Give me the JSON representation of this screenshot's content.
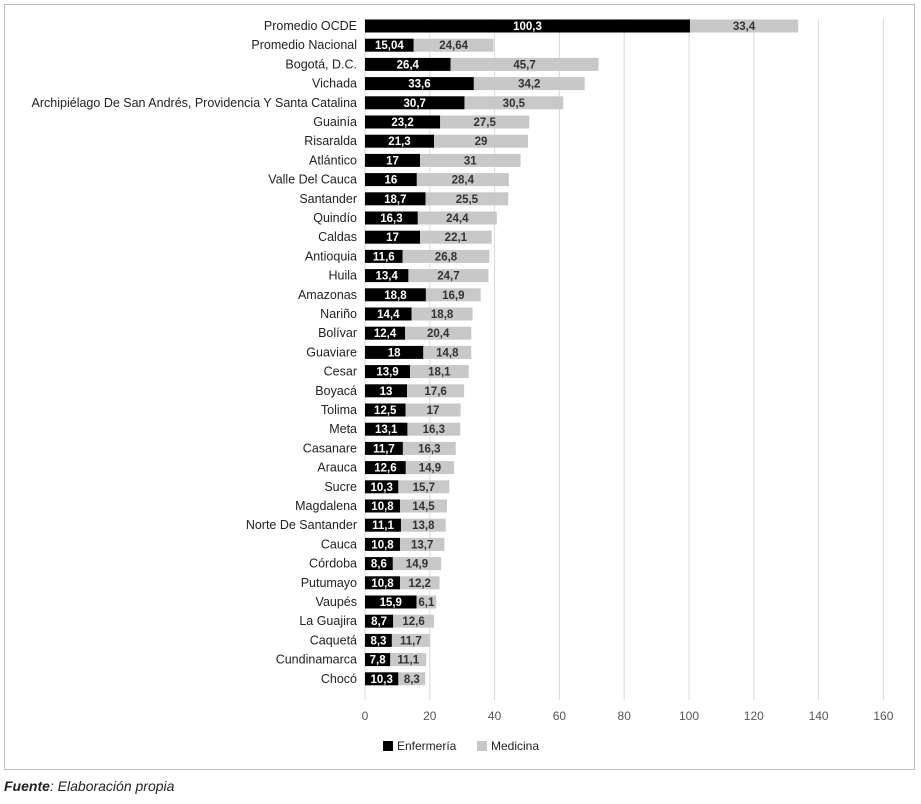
{
  "caption": {
    "label": "Fuente",
    "text": ": Elaboración propia"
  },
  "chart_data": {
    "type": "bar",
    "orientation": "horizontal",
    "stacked": true,
    "categories": [
      "Promedio OCDE",
      "Promedio Nacional",
      "Bogotá, D.C.",
      "Vichada",
      "Archipiélago De San Andrés, Providencia Y Santa Catalina",
      "Guainía",
      "Risaralda",
      "Atlántico",
      "Valle Del Cauca",
      "Santander",
      "Quindío",
      "Caldas",
      "Antioquia",
      "Huila",
      "Amazonas",
      "Nariño",
      "Bolívar",
      "Guaviare",
      "Cesar",
      "Boyacá",
      "Tolima",
      "Meta",
      "Casanare",
      "Arauca",
      "Sucre",
      "Magdalena",
      "Norte De Santander",
      "Cauca",
      "Córdoba",
      "Putumayo",
      "Vaupés",
      "La Guajira",
      "Caquetá",
      "Cundinamarca",
      "Chocó"
    ],
    "series": [
      {
        "name": "Enfermería",
        "color": "#000000",
        "values": [
          100.3,
          15.04,
          26.4,
          33.6,
          30.7,
          23.2,
          21.3,
          17,
          16,
          18.7,
          16.3,
          17,
          11.6,
          13.4,
          18.8,
          14.4,
          12.4,
          18,
          13.9,
          13,
          12.5,
          13.1,
          11.7,
          12.6,
          10.3,
          10.8,
          11.1,
          10.8,
          8.6,
          10.8,
          15.9,
          8.7,
          8.3,
          7.8,
          10.3
        ],
        "labels": [
          "100,3",
          "15,04",
          "26,4",
          "33,6",
          "30,7",
          "23,2",
          "21,3",
          "17",
          "16",
          "18,7",
          "16,3",
          "17",
          "11,6",
          "13,4",
          "18,8",
          "14,4",
          "12,4",
          "18",
          "13,9",
          "13",
          "12,5",
          "13,1",
          "11,7",
          "12,6",
          "10,3",
          "10,8",
          "11,1",
          "10,8",
          "8,6",
          "10,8",
          "15,9",
          "8,7",
          "8,3",
          "7,8",
          "10,3"
        ]
      },
      {
        "name": "Medicina",
        "color": "#c8c8c8",
        "values": [
          33.4,
          24.64,
          45.7,
          34.2,
          30.5,
          27.5,
          29,
          31,
          28.4,
          25.5,
          24.4,
          22.1,
          26.8,
          24.7,
          16.9,
          18.8,
          20.4,
          14.8,
          18.1,
          17.6,
          17,
          16.3,
          16.3,
          14.9,
          15.7,
          14.5,
          13.8,
          13.7,
          14.9,
          12.2,
          6.1,
          12.6,
          11.7,
          11.1,
          8.3
        ],
        "labels": [
          "33,4",
          "24,64",
          "45,7",
          "34,2",
          "30,5",
          "27,5",
          "29",
          "31",
          "28,4",
          "25,5",
          "24,4",
          "22,1",
          "26,8",
          "24,7",
          "16,9",
          "18,8",
          "20,4",
          "14,8",
          "18,1",
          "17,6",
          "17",
          "16,3",
          "16,3",
          "14,9",
          "15,7",
          "14,5",
          "13,8",
          "13,7",
          "14,9",
          "12,2",
          "6,1",
          "12,6",
          "11,7",
          "11,1",
          "8,3"
        ]
      }
    ],
    "xlim": [
      0,
      160
    ],
    "xticks": [
      0,
      20,
      40,
      60,
      80,
      100,
      120,
      140,
      160
    ],
    "xtick_labels": [
      "0",
      "20",
      "40",
      "60",
      "80",
      "100",
      "120",
      "140",
      "160"
    ],
    "grid": "vertical",
    "legend": "bottom-center"
  }
}
